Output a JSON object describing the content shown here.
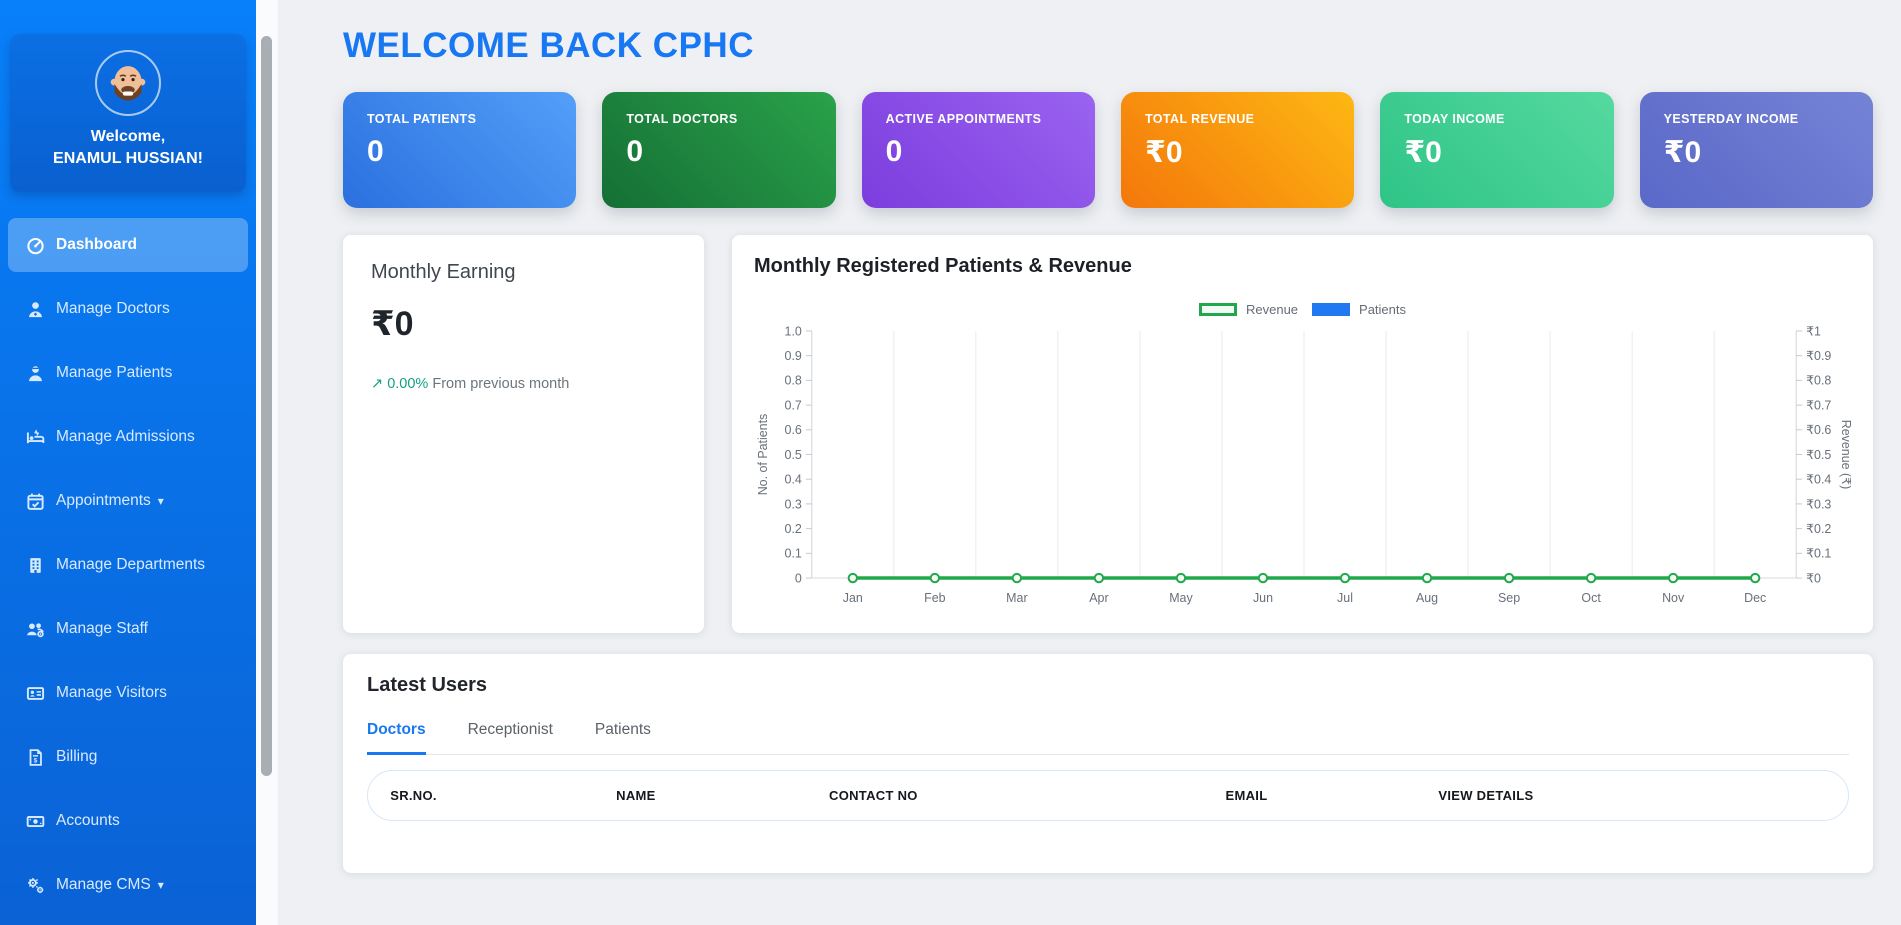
{
  "colors": {
    "accent_blue": "#1877f2",
    "trend_green": "#16a085",
    "revenue_green": "#21a84c",
    "patients_blue": "#2079f2",
    "sidebar_blue_top": "#0880fa",
    "sidebar_blue_bottom": "#0a62d5"
  },
  "sidebar": {
    "welcome_line1": "Welcome,",
    "welcome_line2": "ENAMUL HUSSIAN!",
    "items": [
      {
        "label": "Dashboard",
        "icon": "gauge-icon",
        "active": true
      },
      {
        "label": "Manage Doctors",
        "icon": "user-doctor-icon"
      },
      {
        "label": "Manage Patients",
        "icon": "user-injured-icon"
      },
      {
        "label": "Manage Admissions",
        "icon": "bed-icon"
      },
      {
        "label": "Appointments",
        "icon": "calendar-check-icon",
        "caret": "▾"
      },
      {
        "label": "Manage Departments",
        "icon": "building-icon"
      },
      {
        "label": "Manage Staff",
        "icon": "users-gear-icon"
      },
      {
        "label": "Manage Visitors",
        "icon": "id-card-icon"
      },
      {
        "label": "Billing",
        "icon": "file-invoice-dollar-icon"
      },
      {
        "label": "Accounts",
        "icon": "money-bill-icon"
      },
      {
        "label": "Manage CMS",
        "icon": "gears-icon",
        "caret": "▾"
      }
    ]
  },
  "header": {
    "title": "WELCOME BACK CPHC"
  },
  "stat_cards": [
    {
      "label": "TOTAL PATIENTS",
      "value": "0",
      "gradient": [
        "#2b70df",
        "#539ff8"
      ]
    },
    {
      "label": "TOTAL DOCTORS",
      "value": "0",
      "gradient": [
        "#156f35",
        "#2aa24a"
      ]
    },
    {
      "label": "ACTIVE APPOINTMENTS",
      "value": "0",
      "gradient": [
        "#7c3ddd",
        "#9a63f0"
      ]
    },
    {
      "label": "TOTAL REVENUE",
      "value": "₹0",
      "gradient": [
        "#f4770b",
        "#fdb813"
      ]
    },
    {
      "label": "TODAY INCOME",
      "value": "₹0",
      "gradient": [
        "#2fc487",
        "#55d99f"
      ]
    },
    {
      "label": "YESTERDAY INCOME",
      "value": "₹0",
      "gradient": [
        "#5a68c8",
        "#7583d6"
      ]
    }
  ],
  "monthly_earning": {
    "title": "Monthly Earning",
    "value": "₹0",
    "trend_arrow": "↗",
    "trend_percent": "0.00%",
    "trend_text": "From previous month"
  },
  "chart_data": {
    "type": "line",
    "title": "Monthly Registered Patients & Revenue",
    "categories": [
      "Jan",
      "Feb",
      "Mar",
      "Apr",
      "May",
      "Jun",
      "Jul",
      "Aug",
      "Sep",
      "Oct",
      "Nov",
      "Dec"
    ],
    "series": [
      {
        "name": "Revenue",
        "type": "line",
        "axis": "right",
        "color": "#21a84c",
        "values": [
          0,
          0,
          0,
          0,
          0,
          0,
          0,
          0,
          0,
          0,
          0,
          0
        ]
      },
      {
        "name": "Patients",
        "type": "bar",
        "axis": "left",
        "color": "#2079f2",
        "values": [
          0,
          0,
          0,
          0,
          0,
          0,
          0,
          0,
          0,
          0,
          0,
          0
        ]
      }
    ],
    "left_axis": {
      "label": "No. of Patients",
      "min": 0,
      "max": 1,
      "ticks": [
        "1.0",
        "0.9",
        "0.8",
        "0.7",
        "0.6",
        "0.5",
        "0.4",
        "0.3",
        "0.2",
        "0.1",
        "0"
      ]
    },
    "right_axis": {
      "label": "Revenue (₹)",
      "min": 0,
      "max": 1,
      "ticks": [
        "₹1",
        "₹0.9",
        "₹0.8",
        "₹0.7",
        "₹0.6",
        "₹0.5",
        "₹0.4",
        "₹0.3",
        "₹0.2",
        "₹0.1",
        "₹0"
      ]
    },
    "legend": [
      {
        "label": "Revenue",
        "swatch": "outline"
      },
      {
        "label": "Patients",
        "swatch": "solid"
      }
    ],
    "grid": "vertical",
    "legend_position": "top-center"
  },
  "latest_users": {
    "title": "Latest Users",
    "tabs": [
      {
        "label": "Doctors",
        "active": true
      },
      {
        "label": "Receptionist"
      },
      {
        "label": "Patients"
      }
    ],
    "columns": [
      "SR.NO.",
      "NAME",
      "CONTACT NO",
      "EMAIL",
      "VIEW DETAILS"
    ],
    "rows": []
  }
}
